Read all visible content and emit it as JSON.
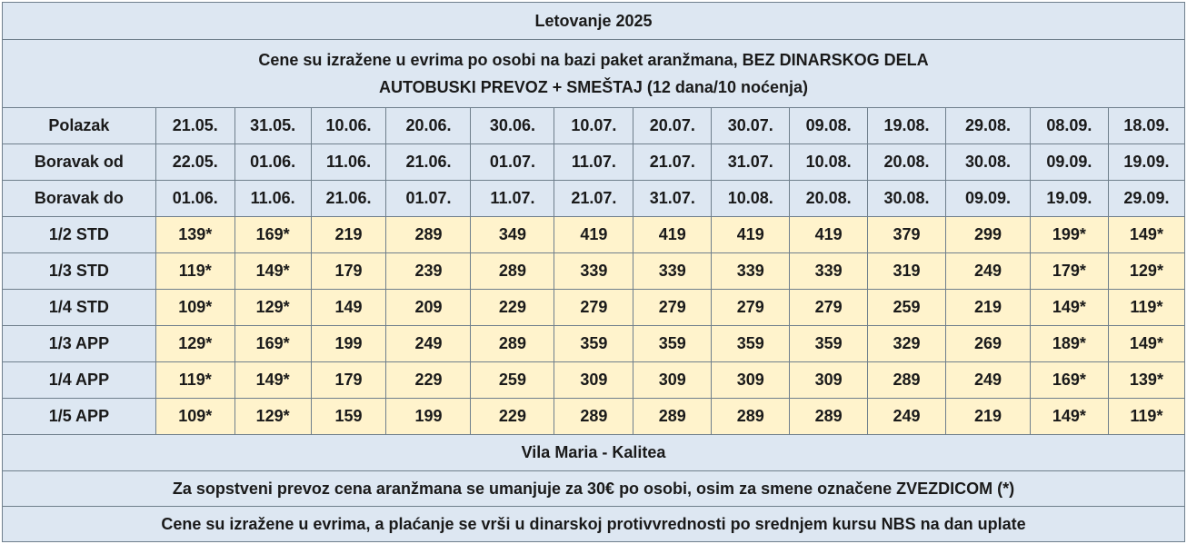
{
  "table": {
    "title": "Letovanje 2025",
    "subtitle_line1": "Cene su izražene u evrima po osobi na bazi paket aranžmana, BEZ DINARSKOG DELA",
    "subtitle_line2": "AUTOBUSKI PREVOZ + SMEŠTAJ (12 dana/10 noćenja)",
    "header_rows": [
      {
        "label": "Polazak",
        "values": [
          "21.05.",
          "31.05.",
          "10.06.",
          "20.06.",
          "30.06.",
          "10.07.",
          "20.07.",
          "30.07.",
          "09.08.",
          "19.08.",
          "29.08.",
          "08.09.",
          "18.09."
        ]
      },
      {
        "label": "Boravak od",
        "values": [
          "22.05.",
          "01.06.",
          "11.06.",
          "21.06.",
          "01.07.",
          "11.07.",
          "21.07.",
          "31.07.",
          "10.08.",
          "20.08.",
          "30.08.",
          "09.09.",
          "19.09."
        ]
      },
      {
        "label": "Boravak do",
        "values": [
          "01.06.",
          "11.06.",
          "21.06.",
          "01.07.",
          "11.07.",
          "21.07.",
          "31.07.",
          "10.08.",
          "20.08.",
          "30.08.",
          "09.09.",
          "19.09.",
          "29.09."
        ]
      }
    ],
    "price_rows": [
      {
        "label": "1/2 STD",
        "values": [
          "139*",
          "169*",
          "219",
          "289",
          "349",
          "419",
          "419",
          "419",
          "419",
          "379",
          "299",
          "199*",
          "149*"
        ]
      },
      {
        "label": "1/3 STD",
        "values": [
          "119*",
          "149*",
          "179",
          "239",
          "289",
          "339",
          "339",
          "339",
          "339",
          "319",
          "249",
          "179*",
          "129*"
        ]
      },
      {
        "label": "1/4 STD",
        "values": [
          "109*",
          "129*",
          "149",
          "209",
          "229",
          "279",
          "279",
          "279",
          "279",
          "259",
          "219",
          "149*",
          "119*"
        ]
      },
      {
        "label": "1/3 APP",
        "values": [
          "129*",
          "169*",
          "199",
          "249",
          "289",
          "359",
          "359",
          "359",
          "359",
          "329",
          "269",
          "189*",
          "149*"
        ]
      },
      {
        "label": "1/4 APP",
        "values": [
          "119*",
          "149*",
          "179",
          "229",
          "259",
          "309",
          "309",
          "309",
          "309",
          "289",
          "249",
          "169*",
          "139*"
        ]
      },
      {
        "label": "1/5 APP",
        "values": [
          "109*",
          "129*",
          "159",
          "199",
          "229",
          "289",
          "289",
          "289",
          "289",
          "249",
          "219",
          "149*",
          "119*"
        ]
      }
    ],
    "villa": "Vila Maria - Kalitea",
    "note_transport": "Za sopstveni prevoz cena aranžmana se umanjuje za 30€ po osobi, osim za smene označene ZVEZDICOM (*)",
    "note_payment": "Cene su izražene u evrima, a plaćanje se vrši u dinarskoj protivvrednosti po srednjem kursu NBS na dan uplate"
  },
  "colors": {
    "band_blue": "#dde7f2",
    "price_yellow": "#fff3cc",
    "border": "#6f7f8c",
    "text": "#1a1a1a"
  }
}
